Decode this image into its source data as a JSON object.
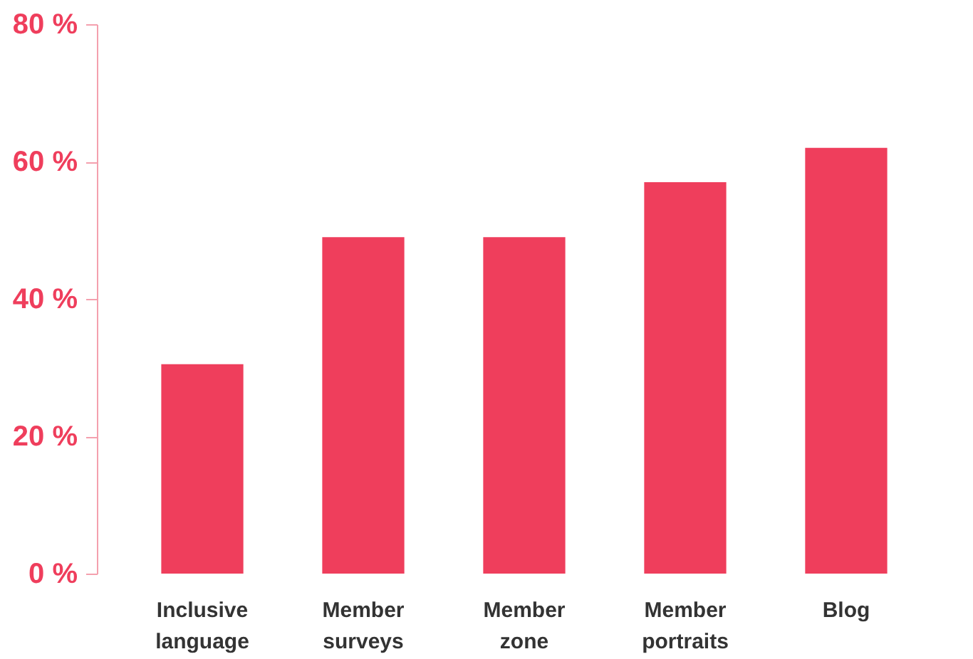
{
  "chart_data": {
    "type": "bar",
    "categories": [
      "Inclusive language",
      "Member surveys",
      "Member zone",
      "Member portraits",
      "Blog"
    ],
    "values": [
      30.5,
      49,
      49,
      57,
      62
    ],
    "color": "#ef3e5c",
    "ylim": [
      0,
      80
    ],
    "yticks": [
      {
        "value": 0,
        "label": "0 %"
      },
      {
        "value": 20,
        "label": "20 %"
      },
      {
        "value": 40,
        "label": "40 %"
      },
      {
        "value": 60,
        "label": "60 %"
      },
      {
        "value": 80,
        "label": "80 %"
      }
    ],
    "grid": false
  }
}
